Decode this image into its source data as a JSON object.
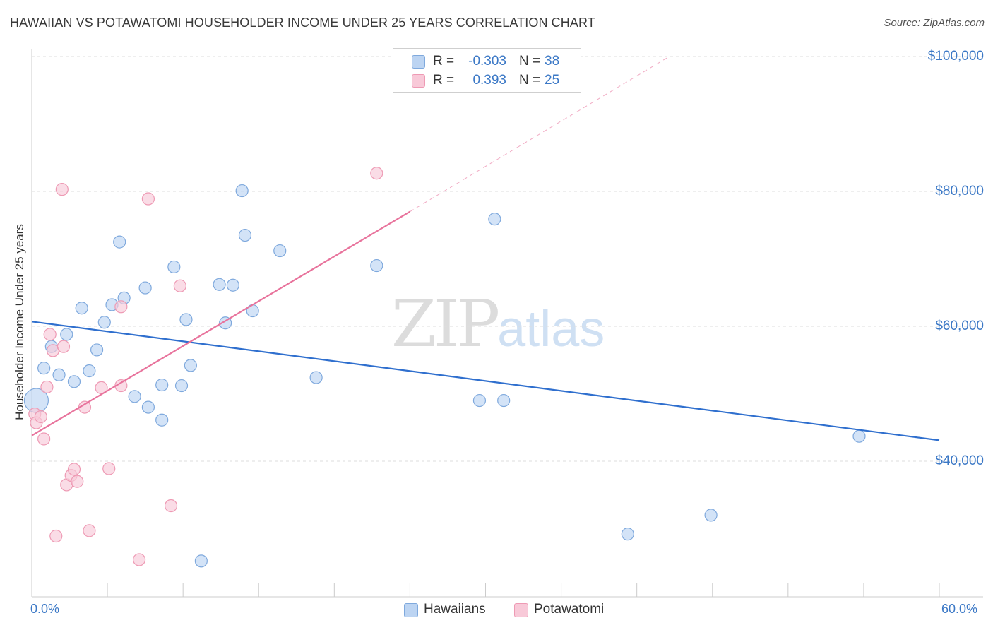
{
  "title": "HAWAIIAN VS POTAWATOMI HOUSEHOLDER INCOME UNDER 25 YEARS CORRELATION CHART",
  "source": "Source: ZipAtlas.com",
  "watermark": {
    "zip": "ZIP",
    "atlas": "atlas"
  },
  "colors": {
    "blue_fill": "#bcd4f2",
    "blue_stroke": "#7fa9dd",
    "blue_line": "#2f6fce",
    "pink_fill": "#f8c9d8",
    "pink_stroke": "#ee9ab4",
    "pink_line": "#e8739c",
    "grid": "#dedede",
    "tick_text": "#3b78c6"
  },
  "stats": [
    {
      "series": "Hawaiians",
      "r_label": "R =",
      "r_value": "-0.303",
      "n_label": "N =",
      "n_value": "38"
    },
    {
      "series": "Potawatomi",
      "r_label": "R =",
      "r_value": "0.393",
      "n_label": "N =",
      "n_value": "25"
    }
  ],
  "legend": [
    "Hawaiians",
    "Potawatomi"
  ],
  "chart_data": {
    "type": "scatter",
    "title": "HAWAIIAN VS POTAWATOMI HOUSEHOLDER INCOME UNDER 25 YEARS CORRELATION CHART",
    "xlabel": "",
    "ylabel": "Householder Income Under 25 years",
    "xlim": [
      0,
      60
    ],
    "ylim": [
      22000,
      102000
    ],
    "x_tick_labels": [
      "0.0%",
      "60.0%"
    ],
    "y_ticks": [
      40000,
      60000,
      80000,
      100000
    ],
    "y_tick_labels": [
      "$40,000",
      "$60,000",
      "$80,000",
      "$100,000"
    ],
    "grid": true,
    "series": [
      {
        "name": "Hawaiians",
        "color": "#7fa9dd",
        "points": [
          [
            0.3,
            49000,
            "large"
          ],
          [
            0.8,
            53800
          ],
          [
            1.3,
            57000
          ],
          [
            1.8,
            52800
          ],
          [
            2.3,
            58800
          ],
          [
            2.8,
            51800
          ],
          [
            3.3,
            62700
          ],
          [
            3.8,
            53400
          ],
          [
            4.3,
            56500
          ],
          [
            4.8,
            60600
          ],
          [
            5.3,
            63200
          ],
          [
            5.8,
            72500
          ],
          [
            6.1,
            64200
          ],
          [
            6.8,
            49600
          ],
          [
            7.5,
            65700
          ],
          [
            7.7,
            48000
          ],
          [
            8.6,
            46100
          ],
          [
            8.6,
            51300
          ],
          [
            9.4,
            68800
          ],
          [
            9.9,
            51200
          ],
          [
            10.2,
            61000
          ],
          [
            10.5,
            54200
          ],
          [
            11.2,
            25200
          ],
          [
            12.4,
            66200
          ],
          [
            12.8,
            60500
          ],
          [
            13.3,
            66100
          ],
          [
            13.9,
            80100
          ],
          [
            14.1,
            73500
          ],
          [
            14.6,
            62300
          ],
          [
            16.4,
            71200
          ],
          [
            18.8,
            52400
          ],
          [
            22.8,
            69000
          ],
          [
            29.6,
            49000
          ],
          [
            30.6,
            75900
          ],
          [
            31.2,
            49000
          ],
          [
            39.4,
            29200
          ],
          [
            44.9,
            32000
          ],
          [
            54.7,
            43700
          ]
        ],
        "trend": {
          "x": [
            0,
            60
          ],
          "y": [
            60700,
            43100
          ]
        }
      },
      {
        "name": "Potawatomi",
        "color": "#ee9ab4",
        "points": [
          [
            0.2,
            47000
          ],
          [
            0.3,
            45700
          ],
          [
            0.6,
            46600
          ],
          [
            0.8,
            43300
          ],
          [
            1.0,
            51000
          ],
          [
            1.2,
            58800
          ],
          [
            1.4,
            56400
          ],
          [
            1.6,
            28900
          ],
          [
            2.0,
            80300
          ],
          [
            2.1,
            57000
          ],
          [
            2.3,
            36500
          ],
          [
            2.6,
            37900
          ],
          [
            2.8,
            38800
          ],
          [
            3.0,
            37000
          ],
          [
            3.5,
            48000
          ],
          [
            3.8,
            29700
          ],
          [
            4.6,
            50900
          ],
          [
            5.1,
            38900
          ],
          [
            5.9,
            62900
          ],
          [
            5.9,
            51200
          ],
          [
            7.1,
            25400
          ],
          [
            7.7,
            78900
          ],
          [
            9.2,
            33400
          ],
          [
            9.8,
            66000
          ],
          [
            22.8,
            82700
          ]
        ],
        "trend": {
          "x": [
            0,
            25
          ],
          "y": [
            43800,
            77000
          ]
        },
        "trend_extension": {
          "x": [
            25,
            42
          ],
          "y": [
            77000,
            99800
          ]
        }
      }
    ]
  }
}
